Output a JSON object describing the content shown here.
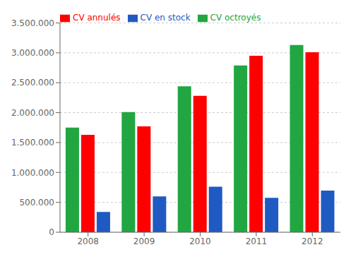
{
  "chart_data": {
    "type": "bar",
    "categories": [
      "2008",
      "2009",
      "2010",
      "2011",
      "2012"
    ],
    "series": [
      {
        "name": "CV octroyés",
        "color": "#21A641",
        "values": [
          1750000,
          2010000,
          2440000,
          2790000,
          3130000
        ]
      },
      {
        "name": "CV annulés",
        "color": "#FF0000",
        "values": [
          1630000,
          1770000,
          2280000,
          2950000,
          3010000
        ]
      },
      {
        "name": "CV en stock",
        "color": "#1F5AC2",
        "values": [
          340000,
          600000,
          760000,
          575000,
          695000
        ]
      }
    ],
    "ylim": [
      0,
      3500000
    ],
    "yticks": [
      0,
      {
        "value": 500000,
        "label": "500.000"
      },
      {
        "value": 1000000,
        "label": "1.000.000"
      },
      {
        "value": 1500000,
        "label": "1.500.000"
      },
      {
        "value": 2000000,
        "label": "2.000.000"
      },
      {
        "value": 2500000,
        "label": "2.500.000"
      },
      {
        "value": 3000000,
        "label": "3.000.000"
      },
      {
        "value": 3500000,
        "label": "3.500.000"
      }
    ],
    "grid": true,
    "legend": "upper left"
  }
}
